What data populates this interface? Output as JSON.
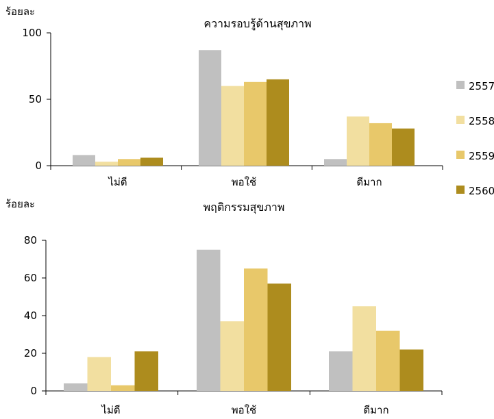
{
  "legend": {
    "position": "right",
    "items": [
      {
        "label": "2557",
        "color": "#c0c0c0"
      },
      {
        "label": "2558",
        "color": "#f2dfa0"
      },
      {
        "label": "2559",
        "color": "#e8c86a"
      },
      {
        "label": "2560",
        "color": "#ad8c1e"
      }
    ]
  },
  "chart_data": [
    {
      "type": "bar",
      "title": "ความรอบรู้ด้านสุขภาพ",
      "ylabel": "ร้อยละ",
      "xlabel": "",
      "categories": [
        "ไม่ดี",
        "พอใช้",
        "ดีมาก"
      ],
      "ylim": [
        0,
        100
      ],
      "yticks": [
        0,
        50,
        100
      ],
      "grid": false,
      "series": [
        {
          "name": "2557",
          "values": [
            8,
            87,
            5
          ]
        },
        {
          "name": "2558",
          "values": [
            3,
            60,
            37
          ]
        },
        {
          "name": "2559",
          "values": [
            5,
            63,
            32
          ]
        },
        {
          "name": "2560",
          "values": [
            6,
            65,
            28
          ]
        }
      ]
    },
    {
      "type": "bar",
      "title": "พฤติกรรมสุขภาพ",
      "ylabel": "ร้อยละ",
      "xlabel": "",
      "categories": [
        "ไม่ดี",
        "พอใช้",
        "ดีมาก"
      ],
      "ylim": [
        0,
        80
      ],
      "yticks": [
        0,
        20,
        40,
        60,
        80
      ],
      "grid": false,
      "series": [
        {
          "name": "2557",
          "values": [
            4,
            75,
            21
          ]
        },
        {
          "name": "2558",
          "values": [
            18,
            37,
            45
          ]
        },
        {
          "name": "2559",
          "values": [
            3,
            65,
            32
          ]
        },
        {
          "name": "2560",
          "values": [
            21,
            57,
            22
          ]
        }
      ]
    }
  ]
}
